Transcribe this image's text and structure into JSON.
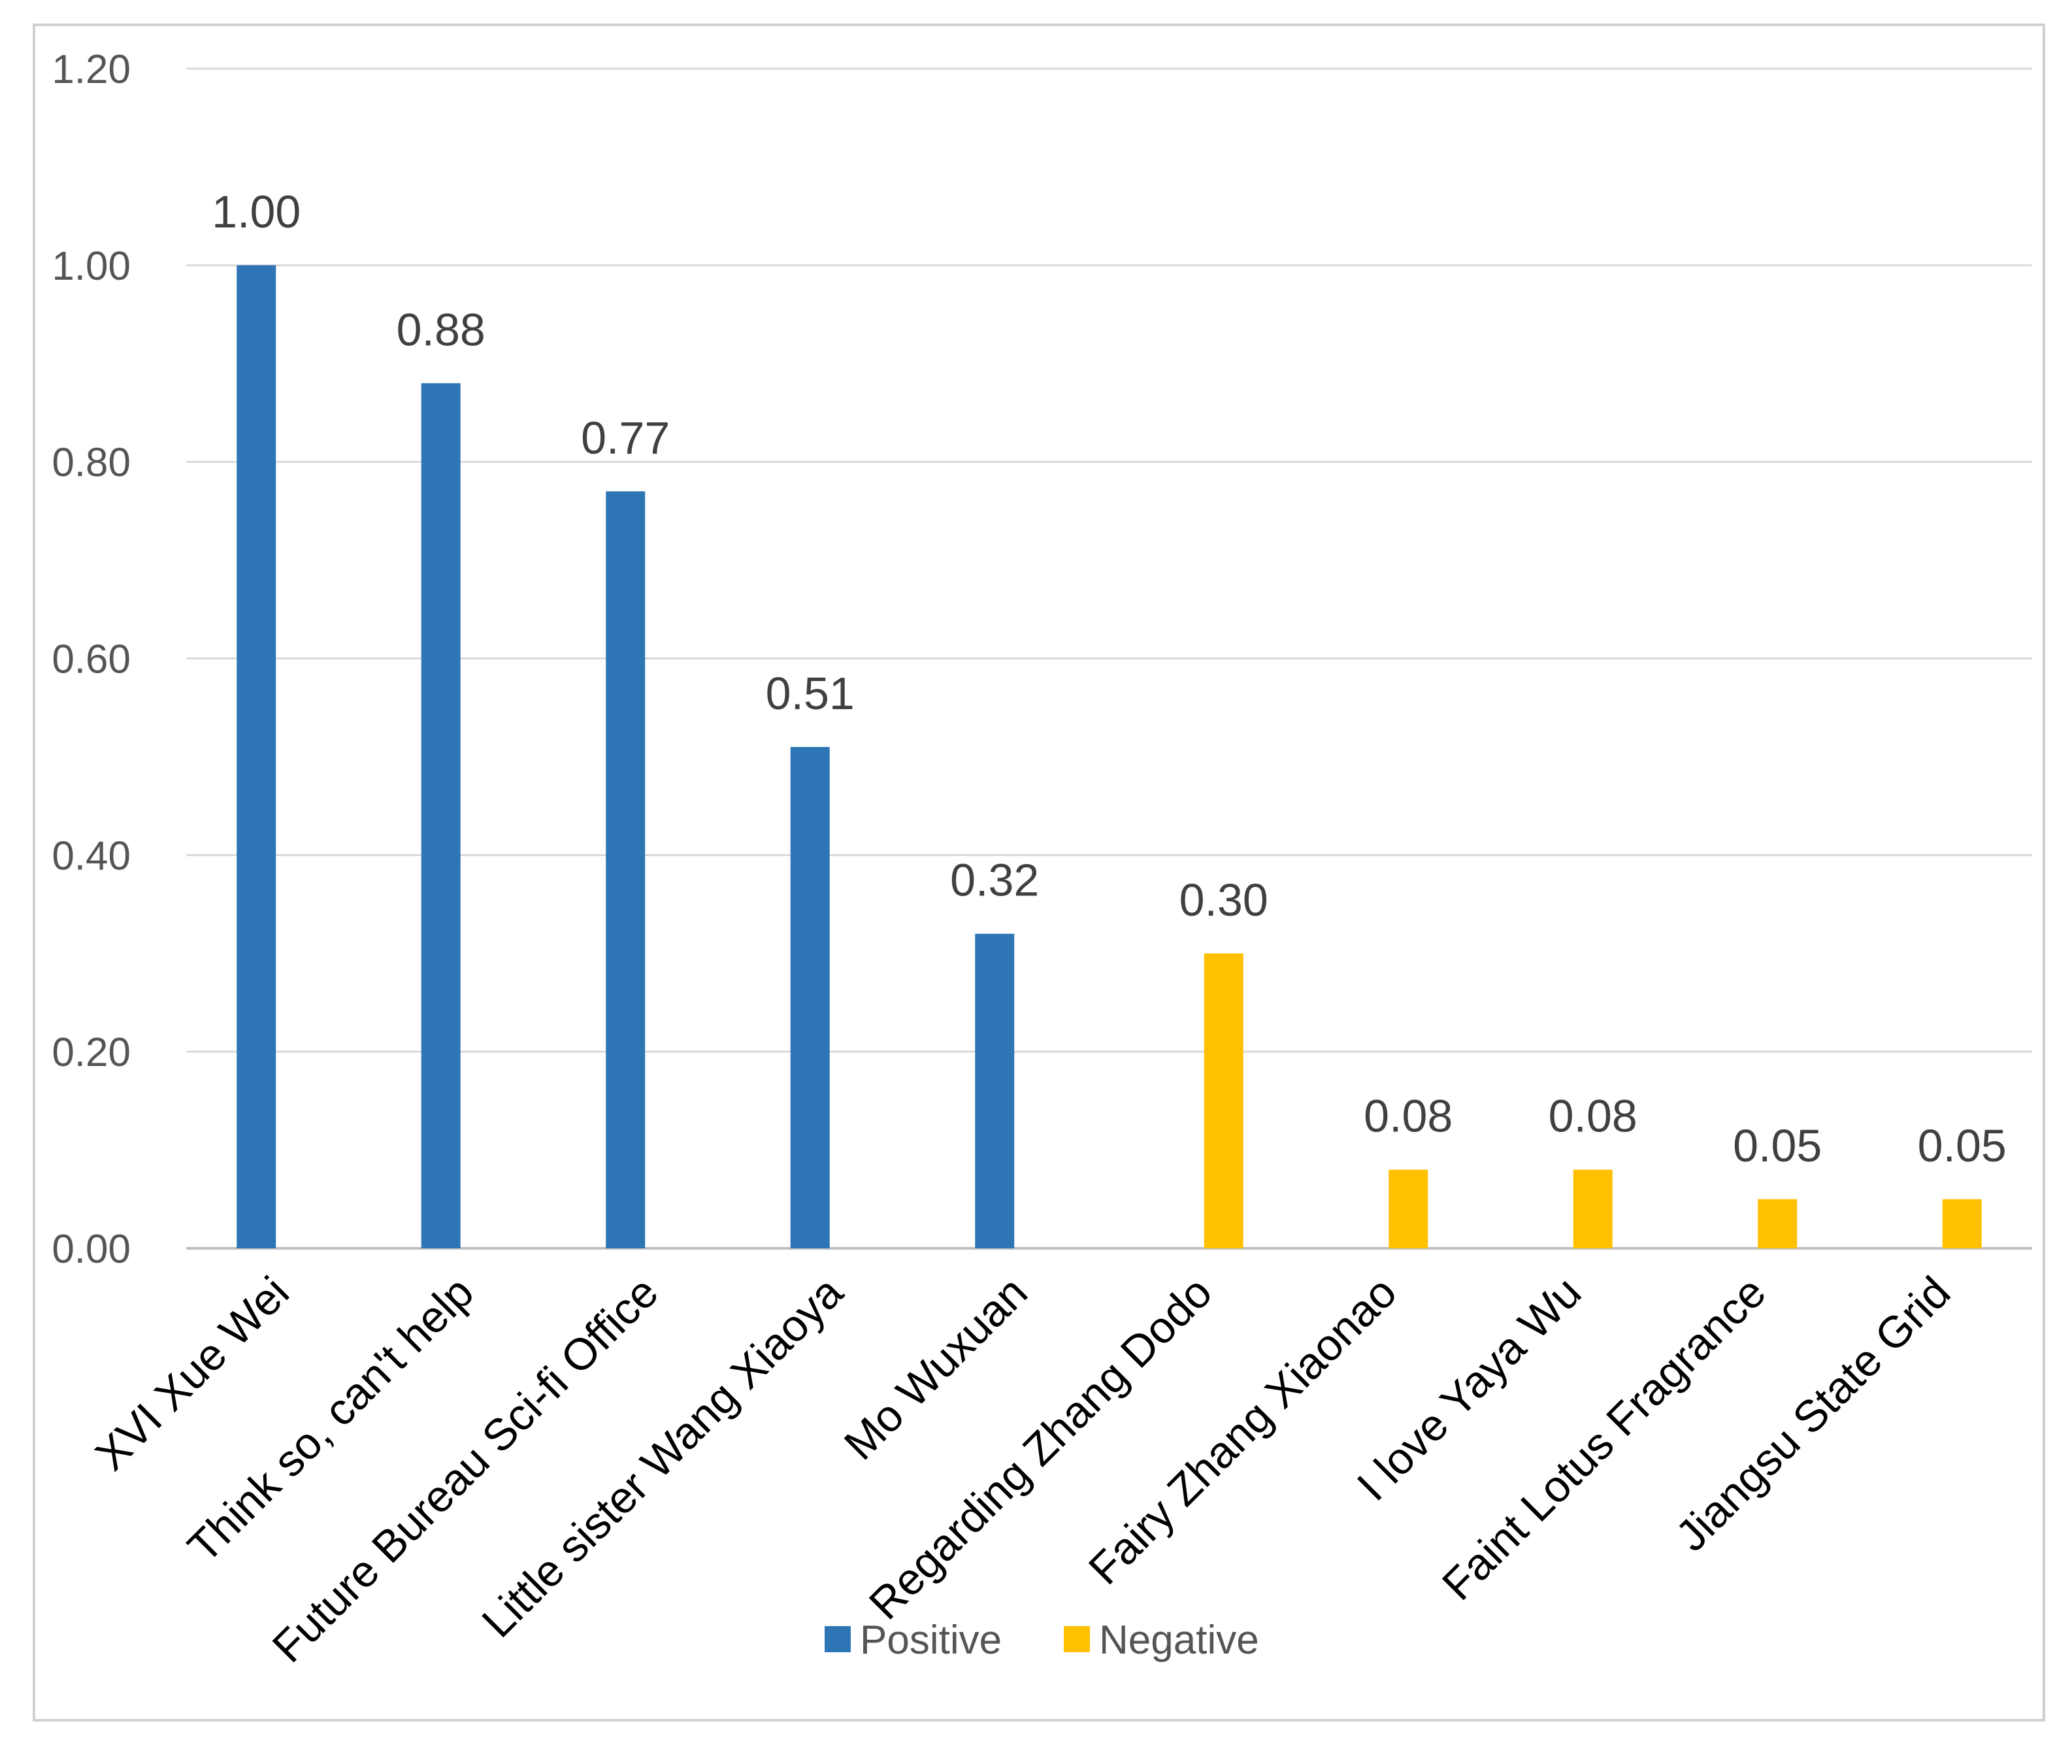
{
  "chart_data": {
    "type": "bar",
    "title": "",
    "xlabel": "",
    "ylabel": "",
    "ylim": [
      0,
      1.2
    ],
    "yticks": [
      "0.00",
      "0.20",
      "0.40",
      "0.60",
      "0.80",
      "1.00",
      "1.20"
    ],
    "grid": true,
    "legend_position": "bottom",
    "categories": [
      "XVI Xue Wei",
      "Think so, can't help",
      "Future Bureau Sci-fi Office",
      "Little sister Wang Xiaoya",
      "Mo Wuxuan",
      "Regarding Zhang Dodo",
      "Fairy Zhang Xiaonao",
      "I love Yaya Wu",
      "Faint Lotus Fragrance",
      "Jiangsu State Grid"
    ],
    "series": [
      {
        "name": "Positive",
        "color": "#2E75B6",
        "values": [
          1.0,
          0.88,
          0.77,
          0.51,
          0.32,
          null,
          null,
          null,
          null,
          null
        ],
        "labels": [
          "1.00",
          "0.88",
          "0.77",
          "0.51",
          "0.32",
          null,
          null,
          null,
          null,
          null
        ]
      },
      {
        "name": "Negative",
        "color": "#FFC000",
        "values": [
          null,
          null,
          null,
          null,
          null,
          0.3,
          0.08,
          0.08,
          0.05,
          0.05
        ],
        "labels": [
          null,
          null,
          null,
          null,
          null,
          "0.30",
          "0.08",
          "0.08",
          "0.05",
          "0.05"
        ]
      }
    ]
  },
  "colors": {
    "gridline": "#d9d9d9",
    "frame": "#d0d0d0"
  }
}
